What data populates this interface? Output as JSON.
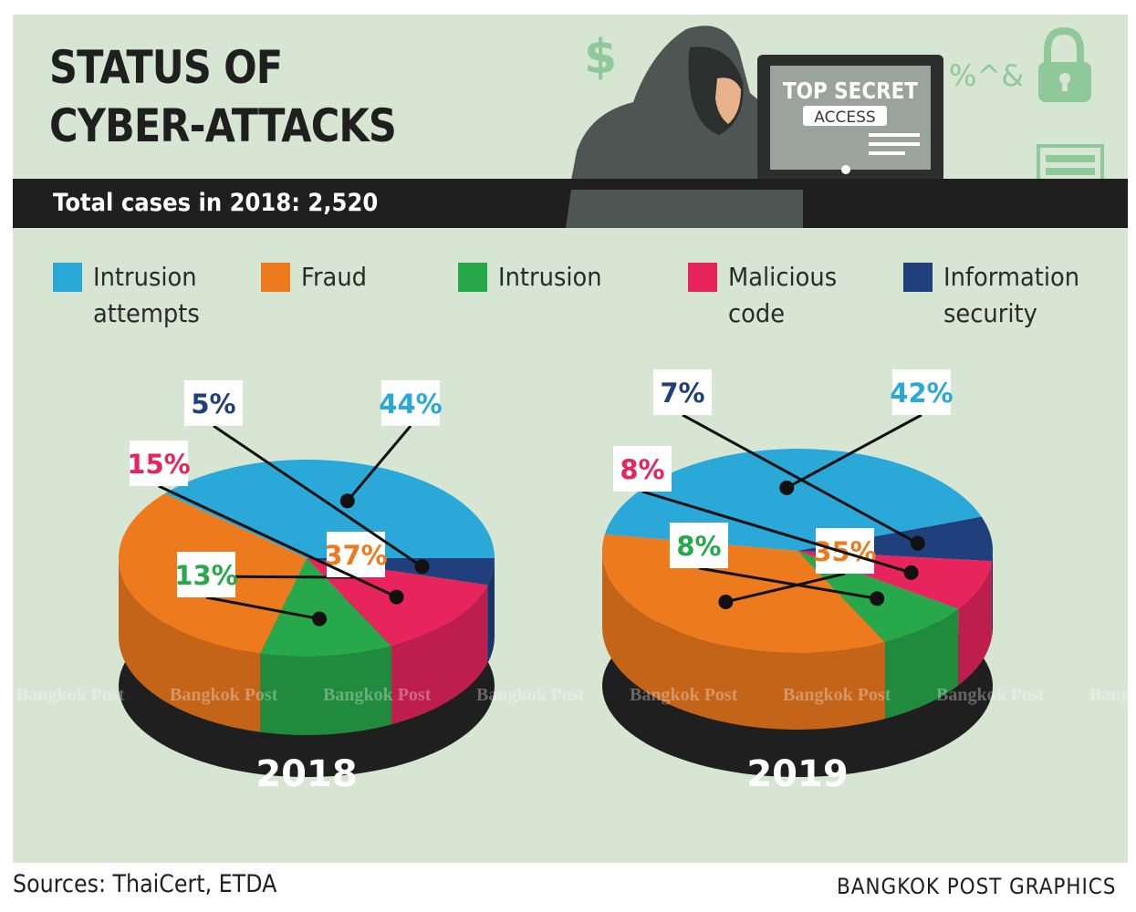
{
  "header": {
    "title_line1": "STATUS OF",
    "title_line2": "CYBER-ATTACKS",
    "subtitle": "Total cases in 2018: 2,520"
  },
  "illustration": {
    "icons": [
      "dollar-icon",
      "hacker-figure",
      "computer-monitor-icon",
      "padlock-icon"
    ],
    "screen_line1": "TOP SECRET",
    "screen_line2": "ACCESS",
    "symbols": "%^&",
    "dollar": "$"
  },
  "legend": [
    {
      "label_line1": "Intrusion",
      "label_line2": "attempts",
      "color": "#2aa8d8"
    },
    {
      "label_line1": "Fraud",
      "label_line2": "",
      "color": "#ee7a1e"
    },
    {
      "label_line1": "Intrusion",
      "label_line2": "",
      "color": "#27a84a"
    },
    {
      "label_line1": "Malicious",
      "label_line2": "code",
      "color": "#e7245c"
    },
    {
      "label_line1": "Information",
      "label_line2": "security",
      "color": "#1f3f7d"
    }
  ],
  "chart_data": [
    {
      "type": "pie",
      "year": "2018",
      "categories": [
        "Intrusion attempts",
        "Fraud",
        "Intrusion",
        "Malicious code",
        "Information security"
      ],
      "values": [
        44,
        37,
        13,
        15,
        5
      ],
      "labels": [
        "44%",
        "37%",
        "13%",
        "15%",
        "5%"
      ],
      "colors": [
        "#2aa8d8",
        "#ee7a1e",
        "#27a84a",
        "#e7245c",
        "#1f3f7d"
      ],
      "legend": "top"
    },
    {
      "type": "pie",
      "year": "2019",
      "categories": [
        "Intrusion attempts",
        "Fraud",
        "Intrusion",
        "Malicious code",
        "Information security"
      ],
      "values": [
        42,
        35,
        8,
        8,
        7
      ],
      "labels": [
        "42%",
        "35%",
        "8%",
        "8%",
        "7%"
      ],
      "colors": [
        "#2aa8d8",
        "#ee7a1e",
        "#27a84a",
        "#e7245c",
        "#1f3f7d"
      ],
      "legend": "top"
    }
  ],
  "watermark": "Bangkok Post",
  "footer": {
    "sources": "Sources: ThaiCert, ETDA",
    "credit": "BANGKOK POST GRAPHICS"
  }
}
